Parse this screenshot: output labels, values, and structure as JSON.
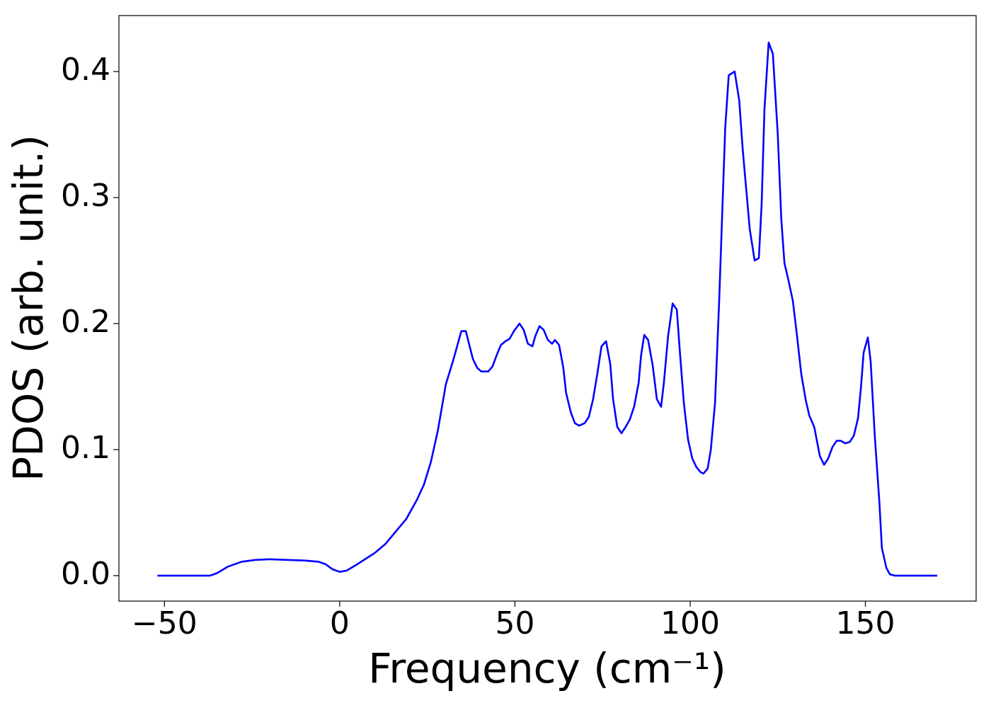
{
  "chart_data": {
    "type": "line",
    "xlabel": "Frequency (cm⁻¹)",
    "ylabel": "PDOS (arb. unit.)",
    "x": [
      -52,
      -37,
      -35,
      -32,
      -28,
      -24,
      -20,
      -15,
      -10,
      -6,
      -4,
      -2,
      0,
      2,
      5,
      10,
      13,
      16,
      19,
      22,
      24,
      26,
      28,
      30.3,
      32.3,
      34.7,
      36,
      36.8,
      38,
      39.2,
      40.4,
      42.4,
      43.6,
      44.8,
      46,
      47.3,
      48.5,
      49.7,
      51.3,
      52.5,
      53.7,
      55,
      55.8,
      57,
      58.2,
      59.4,
      60.6,
      61.4,
      62.6,
      63.8,
      64.6,
      65.9,
      67.1,
      68.3,
      69.9,
      71.1,
      72.3,
      73.5,
      74.7,
      76,
      77.2,
      78,
      79.2,
      80.4,
      81.6,
      82.8,
      84,
      85.3,
      86,
      86.9,
      88,
      89.3,
      90.5,
      91.7,
      92.5,
      93.7,
      95,
      96.2,
      97,
      98.2,
      99.4,
      100.6,
      101.8,
      103,
      103.8,
      105,
      105.9,
      107.1,
      108.3,
      110,
      111,
      112.7,
      114,
      115,
      117,
      118.4,
      119.6,
      120.4,
      121.2,
      122.4,
      123.6,
      125,
      126,
      126.9,
      128,
      129.3,
      130.5,
      131.7,
      133,
      134,
      135.4,
      137,
      138.2,
      139.4,
      140.6,
      141.8,
      143,
      144.2,
      145.5,
      146.7,
      147.9,
      148.7,
      149.5,
      150.7,
      151.5,
      152.7,
      154,
      154.7,
      156,
      157,
      158.4,
      170.5
    ],
    "values": [
      0,
      0,
      0.002,
      0.007,
      0.011,
      0.0125,
      0.013,
      0.0125,
      0.012,
      0.011,
      0.009,
      0.005,
      0.003,
      0.004,
      0.009,
      0.018,
      0.025,
      0.035,
      0.045,
      0.06,
      0.072,
      0.09,
      0.115,
      0.152,
      0.17,
      0.194,
      0.194,
      0.185,
      0.172,
      0.165,
      0.162,
      0.162,
      0.166,
      0.175,
      0.183,
      0.186,
      0.188,
      0.194,
      0.2,
      0.195,
      0.184,
      0.182,
      0.19,
      0.198,
      0.195,
      0.187,
      0.184,
      0.187,
      0.183,
      0.165,
      0.145,
      0.13,
      0.121,
      0.119,
      0.121,
      0.126,
      0.14,
      0.16,
      0.182,
      0.186,
      0.168,
      0.14,
      0.118,
      0.113,
      0.118,
      0.124,
      0.134,
      0.153,
      0.175,
      0.191,
      0.187,
      0.167,
      0.14,
      0.134,
      0.153,
      0.19,
      0.216,
      0.211,
      0.18,
      0.137,
      0.108,
      0.093,
      0.086,
      0.082,
      0.081,
      0.085,
      0.1,
      0.137,
      0.22,
      0.355,
      0.397,
      0.4,
      0.377,
      0.338,
      0.275,
      0.25,
      0.252,
      0.295,
      0.37,
      0.423,
      0.414,
      0.35,
      0.283,
      0.248,
      0.235,
      0.218,
      0.19,
      0.16,
      0.139,
      0.127,
      0.118,
      0.095,
      0.088,
      0.093,
      0.102,
      0.107,
      0.107,
      0.105,
      0.106,
      0.111,
      0.125,
      0.148,
      0.177,
      0.189,
      0.17,
      0.11,
      0.058,
      0.022,
      0.006,
      0.001,
      0,
      0
    ],
    "color": "#0000ff",
    "xlim": [
      -63,
      181.6
    ],
    "ylim": [
      -0.0202,
      0.4444
    ],
    "xticks": [
      {
        "value": -50,
        "label": "−50"
      },
      0,
      50,
      100,
      150
    ],
    "yticks": [
      {
        "value": 0,
        "label": "0.0"
      },
      0.1,
      0.2,
      0.3,
      0.4
    ]
  }
}
